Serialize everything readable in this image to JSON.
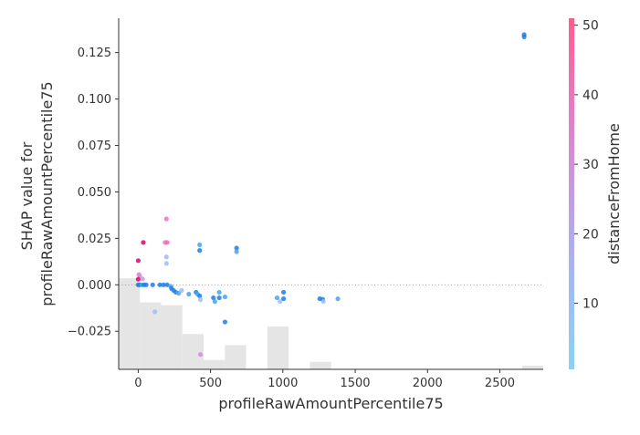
{
  "chart_data": {
    "type": "scatter",
    "xlabel": "profileRawAmountPercentile75",
    "ylabel_lines": [
      "SHAP value for",
      "profileRawAmountPercentile75"
    ],
    "xlim": [
      -135,
      2800
    ],
    "ylim": [
      -0.0455,
      0.1435
    ],
    "x_ticks": [
      0,
      500,
      1000,
      1500,
      2000,
      2500
    ],
    "x_tick_labels": [
      "0",
      "500",
      "1000",
      "1500",
      "2000",
      "2500"
    ],
    "y_ticks": [
      -0.025,
      0.0,
      0.025,
      0.05,
      0.075,
      0.1,
      0.125
    ],
    "y_tick_labels": [
      "−0.025",
      "0.000",
      "0.025",
      "0.050",
      "0.075",
      "0.100",
      "0.125"
    ],
    "zero_line": true,
    "grid": false,
    "colorbar": {
      "label": "distanceFromHome",
      "range": [
        0.5,
        51
      ],
      "ticks": [
        10,
        20,
        30,
        40,
        50
      ],
      "tick_labels": [
        "10",
        "20",
        "30",
        "40",
        "50"
      ],
      "colors": [
        "#8ad3f3",
        "#a2b9f2",
        "#c49be3",
        "#e57bc2",
        "#ff5c8d"
      ]
    },
    "histogram": {
      "color": "#e5e5e5",
      "bins": [
        {
          "x0": -135,
          "x1": 12,
          "height": 0.0035
        },
        {
          "x0": 12,
          "x1": 158,
          "height": -0.0095
        },
        {
          "x0": 158,
          "x1": 305,
          "height": -0.011
        },
        {
          "x0": 305,
          "x1": 452,
          "height": -0.0265
        },
        {
          "x0": 452,
          "x1": 599,
          "height": -0.0405
        },
        {
          "x0": 599,
          "x1": 746,
          "height": -0.0325
        },
        {
          "x0": 893,
          "x1": 1040,
          "height": -0.0225
        },
        {
          "x0": 1187,
          "x1": 1334,
          "height": -0.0415
        },
        {
          "x0": 2655,
          "x1": 2800,
          "height": -0.0435
        }
      ]
    },
    "points": [
      {
        "x": 2668,
        "y": 0.1347,
        "c": 5
      },
      {
        "x": 2668,
        "y": 0.1335,
        "c": 4
      },
      {
        "x": 195,
        "y": 0.0355,
        "c": 40
      },
      {
        "x": 35,
        "y": 0.0228,
        "c": 50
      },
      {
        "x": 185,
        "y": 0.0228,
        "c": 35
      },
      {
        "x": 200,
        "y": 0.0228,
        "c": 45
      },
      {
        "x": 425,
        "y": 0.0215,
        "c": 8
      },
      {
        "x": 425,
        "y": 0.0185,
        "c": 4
      },
      {
        "x": 680,
        "y": 0.0198,
        "c": 5
      },
      {
        "x": 680,
        "y": 0.0178,
        "c": 9
      },
      {
        "x": 195,
        "y": 0.015,
        "c": 12
      },
      {
        "x": 195,
        "y": 0.0115,
        "c": 10
      },
      {
        "x": 0,
        "y": 0.013,
        "c": 50
      },
      {
        "x": 5,
        "y": 0.0055,
        "c": 38
      },
      {
        "x": 10,
        "y": 0.0048,
        "c": 30
      },
      {
        "x": 30,
        "y": 0.0032,
        "c": 25
      },
      {
        "x": 0,
        "y": 0.003,
        "c": 50
      },
      {
        "x": 0,
        "y": 0.0,
        "c": 5
      },
      {
        "x": 10,
        "y": 0.0,
        "c": 5
      },
      {
        "x": 25,
        "y": 0.0,
        "c": 8
      },
      {
        "x": 40,
        "y": 0.0,
        "c": 5
      },
      {
        "x": 55,
        "y": 0.0,
        "c": 6
      },
      {
        "x": 100,
        "y": 0.0,
        "c": 5
      },
      {
        "x": 150,
        "y": 0.0,
        "c": 5
      },
      {
        "x": 175,
        "y": 0.0,
        "c": 5
      },
      {
        "x": 200,
        "y": 0.0,
        "c": 5
      },
      {
        "x": 225,
        "y": -0.0008,
        "c": 7
      },
      {
        "x": 230,
        "y": -0.002,
        "c": 6
      },
      {
        "x": 245,
        "y": -0.003,
        "c": 5
      },
      {
        "x": 260,
        "y": -0.004,
        "c": 5
      },
      {
        "x": 280,
        "y": -0.0045,
        "c": 9
      },
      {
        "x": 300,
        "y": -0.003,
        "c": 12
      },
      {
        "x": 350,
        "y": -0.005,
        "c": 7
      },
      {
        "x": 400,
        "y": -0.004,
        "c": 6
      },
      {
        "x": 410,
        "y": -0.005,
        "c": 8
      },
      {
        "x": 425,
        "y": -0.006,
        "c": 5
      },
      {
        "x": 430,
        "y": -0.008,
        "c": 10
      },
      {
        "x": 520,
        "y": -0.007,
        "c": 5
      },
      {
        "x": 530,
        "y": -0.009,
        "c": 9
      },
      {
        "x": 560,
        "y": -0.004,
        "c": 8
      },
      {
        "x": 560,
        "y": -0.007,
        "c": 6
      },
      {
        "x": 600,
        "y": -0.0065,
        "c": 9
      },
      {
        "x": 960,
        "y": -0.007,
        "c": 8
      },
      {
        "x": 980,
        "y": -0.009,
        "c": 11
      },
      {
        "x": 1005,
        "y": -0.004,
        "c": 4
      },
      {
        "x": 1005,
        "y": -0.0075,
        "c": 5
      },
      {
        "x": 1255,
        "y": -0.0075,
        "c": 6
      },
      {
        "x": 1275,
        "y": -0.0078,
        "c": 5
      },
      {
        "x": 1280,
        "y": -0.009,
        "c": 10
      },
      {
        "x": 1380,
        "y": -0.0075,
        "c": 9
      },
      {
        "x": 115,
        "y": -0.0145,
        "c": 10
      },
      {
        "x": 600,
        "y": -0.02,
        "c": 3
      },
      {
        "x": 430,
        "y": -0.0375,
        "c": 30
      }
    ]
  }
}
